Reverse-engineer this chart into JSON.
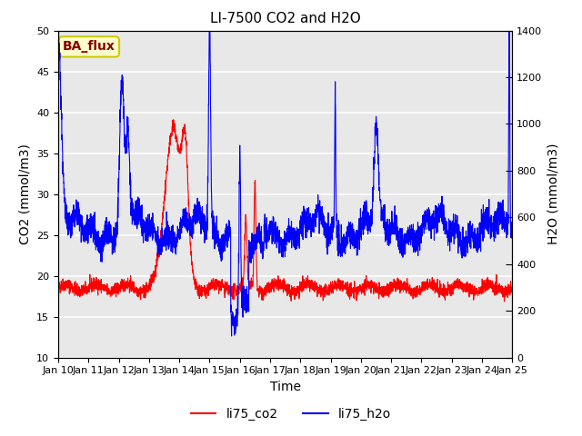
{
  "title": "LI-7500 CO2 and H2O",
  "xlabel": "Time",
  "ylabel_left": "CO2 (mmol/m3)",
  "ylabel_right": "H2O (mmol/m3)",
  "ylim_left": [
    10,
    50
  ],
  "ylim_right": [
    0,
    1400
  ],
  "yticks_left": [
    10,
    15,
    20,
    25,
    30,
    35,
    40,
    45,
    50
  ],
  "yticks_right": [
    0,
    200,
    400,
    600,
    800,
    1000,
    1200,
    1400
  ],
  "xtick_labels": [
    "Jan 10",
    "Jan 11",
    "Jan 12",
    "Jan 13",
    "Jan 14",
    "Jan 15",
    "Jan 16",
    "Jan 17",
    "Jan 18",
    "Jan 19",
    "Jan 20",
    "Jan 21",
    "Jan 22",
    "Jan 23",
    "Jan 24",
    "Jan 25"
  ],
  "color_co2": "#ff0000",
  "color_h2o": "#0000ff",
  "legend_label_co2": "li75_co2",
  "legend_label_h2o": "li75_h2o",
  "text_box_label": "BA_flux",
  "text_box_facecolor": "#ffffcc",
  "text_box_edgecolor": "#cccc00",
  "text_box_textcolor": "#880000",
  "background_color": "#e8e8e8",
  "grid_color": "#ffffff",
  "n_days": 15,
  "seed": 42
}
